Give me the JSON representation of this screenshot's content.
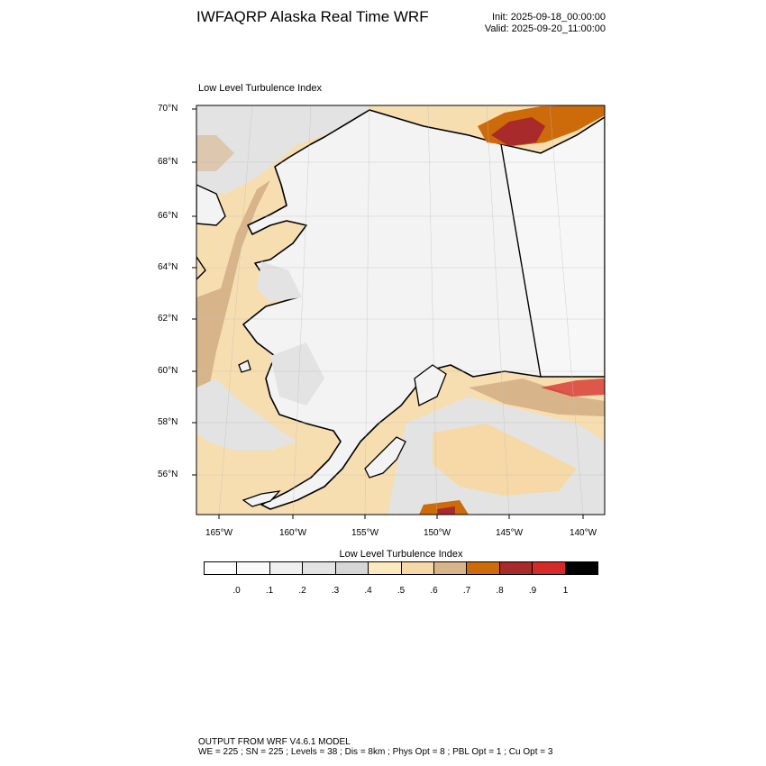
{
  "header": {
    "title": "IWFAQRP Alaska Real Time WRF",
    "init": "Init: 2025-09-18_00:00:00",
    "valid": "Valid: 2025-09-20_11:00:00"
  },
  "plot": {
    "title": "Low Level Turbulence Index",
    "lat_labels": [
      "70°N",
      "68°N",
      "66°N",
      "64°N",
      "62°N",
      "60°N",
      "58°N",
      "56°N"
    ],
    "lon_labels": [
      "165°W",
      "160°W",
      "155°W",
      "150°W",
      "145°W",
      "140°W"
    ],
    "colors": {
      "land_base": "#f3f3f3",
      "ocean_base": "#f7deb0"
    }
  },
  "colorbar": {
    "title": "Low Level Turbulence Index",
    "colors": [
      "#ffffff",
      "#fafafa",
      "#f0f0f0",
      "#e3e3e3",
      "#d6d6d6",
      "#fde9bd",
      "#f6d9a6",
      "#d8b48a",
      "#cd6a0a",
      "#a82a2a",
      "#d52a2a",
      "#000000"
    ],
    "labels": [
      ".0",
      ".1",
      ".2",
      ".3",
      ".4",
      ".5",
      ".6",
      ".7",
      ".8",
      ".9",
      "1"
    ]
  },
  "footer": {
    "line1": "OUTPUT FROM WRF V4.6.1 MODEL",
    "line2": "WE = 225 ; SN = 225 ; Levels = 38 ; Dis = 8km ; Phys Opt = 8 ; PBL Opt = 1 ; Cu Opt = 3"
  }
}
